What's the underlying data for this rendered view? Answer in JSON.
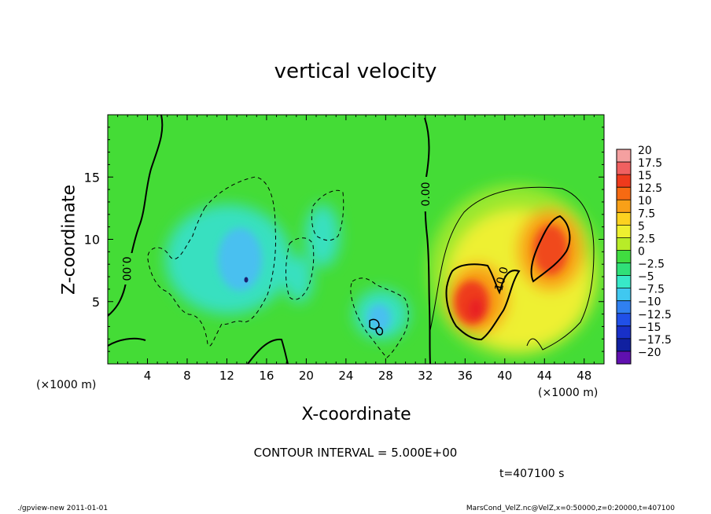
{
  "chart_data": {
    "type": "heatmap",
    "title": "vertical velocity",
    "xlabel": "X-coordinate",
    "ylabel": "Z-coordinate",
    "x_unit_label": "(×1000 m)",
    "y_unit_label": "(×1000 m)",
    "xlim": [
      0,
      50
    ],
    "ylim": [
      0,
      20
    ],
    "x_ticks": [
      4,
      8,
      12,
      16,
      20,
      24,
      28,
      32,
      36,
      40,
      44,
      48
    ],
    "y_ticks": [
      5,
      10,
      15
    ],
    "contour_interval_text": "CONTOUR INTERVAL = 5.000E+00",
    "time_text": "t=407100 s",
    "contour_labels": [
      "0.00",
      "0.00",
      "10.0"
    ],
    "colorbar": {
      "labels": [
        "20",
        "17.5",
        "15",
        "12.5",
        "10",
        "7.5",
        "5",
        "2.5",
        "0",
        "−2.5",
        "−5",
        "−7.5",
        "−10",
        "−12.5",
        "−15",
        "−17.5",
        "−20"
      ],
      "colors": [
        "#f4a0a0",
        "#f06060",
        "#ee3a1c",
        "#f66a12",
        "#f8a018",
        "#fcd220",
        "#eef030",
        "#b8ec28",
        "#40dc40",
        "#30e078",
        "#38e8c8",
        "#40c8f0",
        "#3080f0",
        "#2050e8",
        "#1830c8",
        "#1020a0",
        "#6010b0"
      ]
    },
    "features": [
      {
        "kind": "updraft",
        "x": 37,
        "z": 4.5,
        "peak": 17.5
      },
      {
        "kind": "updraft",
        "x": 45,
        "z": 9,
        "peak": 15
      },
      {
        "kind": "downdraft",
        "x": 14,
        "z": 7,
        "peak": -8
      },
      {
        "kind": "downdraft",
        "x": 27.5,
        "z": 3,
        "peak": -8
      }
    ]
  },
  "footer": {
    "left": "./gpview-new  2011-01-01",
    "right": "MarsCond_VelZ.nc@VelZ,x=0:50000,z=0:20000,t=407100"
  }
}
